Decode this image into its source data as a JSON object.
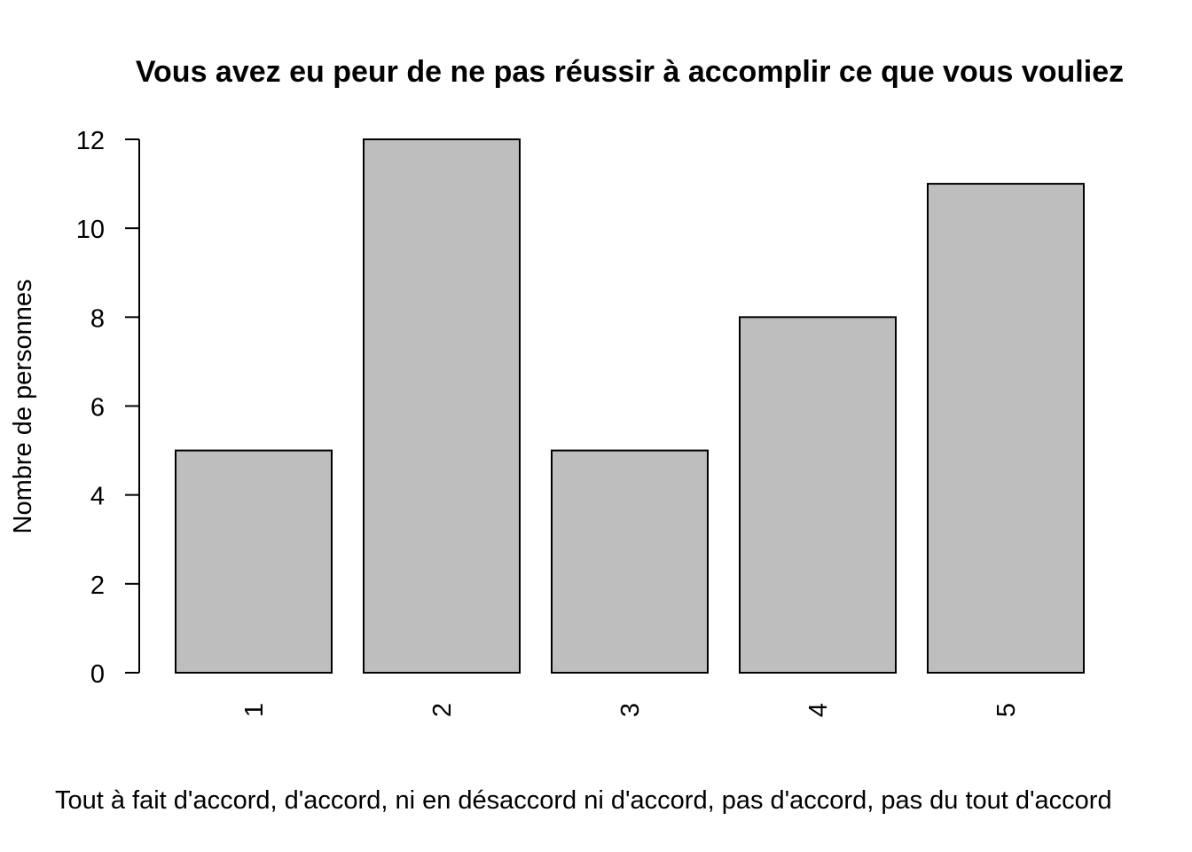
{
  "chart_data": {
    "type": "bar",
    "title": "Vous avez eu peur de ne pas réussir à accomplir ce que vous vouliez",
    "xlabel": "Tout à fait d'accord, d'accord, ni en désaccord ni d'accord, pas d'accord, pas du tout d'accord",
    "ylabel": "Nombre de personnes",
    "categories": [
      "1",
      "2",
      "3",
      "4",
      "5"
    ],
    "values": [
      5,
      12,
      5,
      8,
      11
    ],
    "ylim": [
      0,
      12
    ],
    "yticks": [
      "0",
      "2",
      "4",
      "6",
      "8",
      "10",
      "12"
    ],
    "x_tick_labels_rotated": true,
    "grid": false,
    "legend": "none",
    "bar_fill": "#bebebe",
    "bar_stroke": "#000000"
  }
}
